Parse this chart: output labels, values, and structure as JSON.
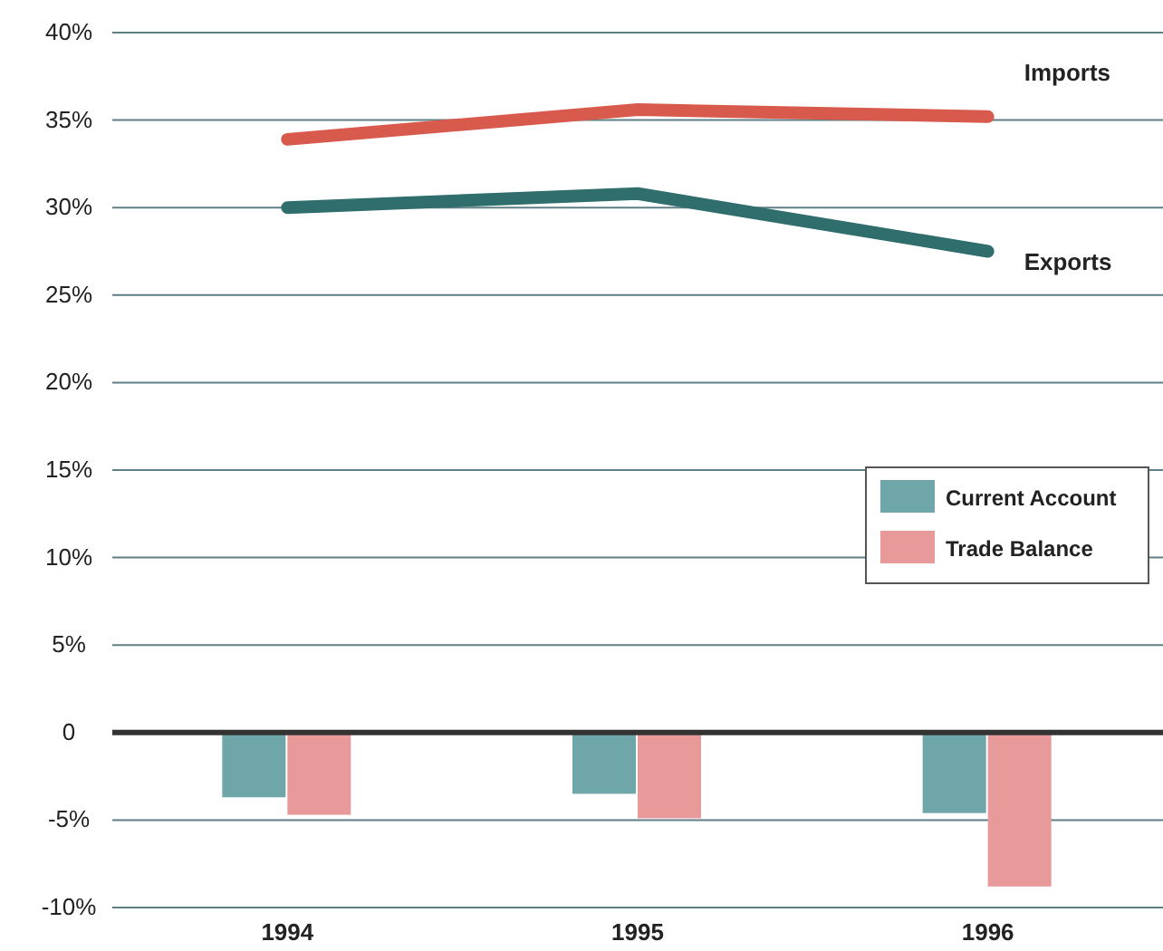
{
  "chart_data": {
    "type": "bar",
    "categories": [
      "1994",
      "1995",
      "1996"
    ],
    "series": [
      {
        "name": "Current Account",
        "color": "#6fa6a9",
        "values": [
          -3.7,
          -3.5,
          -4.6
        ]
      },
      {
        "name": "Trade Balance",
        "color": "#e89a9a",
        "values": [
          -4.7,
          -4.9,
          -8.8
        ]
      },
      {
        "name": "Imports",
        "type": "line",
        "color": "#d75a4c",
        "values": [
          33.9,
          35.6,
          35.2
        ]
      },
      {
        "name": "Exports",
        "type": "line",
        "color": "#2f6e6c",
        "values": [
          30.0,
          30.8,
          27.5
        ]
      }
    ],
    "ylim": [
      -10,
      40
    ],
    "yticks": [
      {
        "value": -10,
        "label": "-10%"
      },
      {
        "value": -5,
        "label": "-5%"
      },
      0,
      {
        "value": 5,
        "label": "5%"
      },
      {
        "value": 10,
        "label": "10%"
      },
      {
        "value": 15,
        "label": "15%"
      },
      {
        "value": 20,
        "label": "20%"
      },
      {
        "value": 25,
        "label": "25%"
      },
      {
        "value": 30,
        "label": "30%"
      },
      {
        "value": 35,
        "label": "35%"
      },
      {
        "value": 40,
        "label": "40%"
      }
    ],
    "grid": "y",
    "legend": "right",
    "line_style": "solid",
    "marker": "none"
  }
}
